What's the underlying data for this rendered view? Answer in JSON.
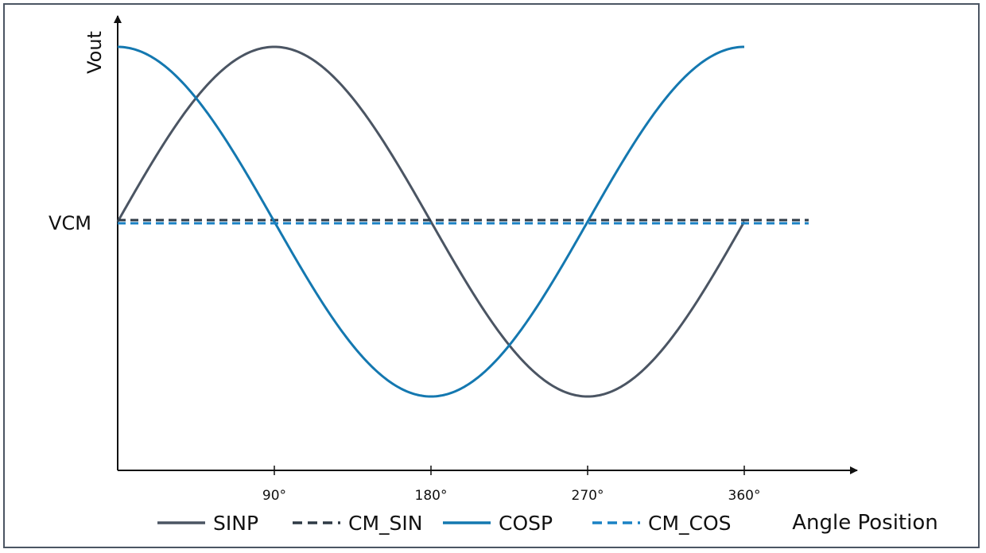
{
  "chart_data": {
    "type": "line",
    "title": "",
    "xlabel": "Angle Position",
    "ylabel": "Vout",
    "y_ref_label": "VCM",
    "x_ticks": [
      {
        "value": 90,
        "label": "90°"
      },
      {
        "value": 180,
        "label": "180°"
      },
      {
        "value": 270,
        "label": "270°"
      },
      {
        "value": 360,
        "label": "360°"
      }
    ],
    "xlim": [
      0,
      390
    ],
    "ylim": [
      -1.4,
      1.0
    ],
    "grid": false,
    "legend_position": "bottom",
    "series": [
      {
        "name": "SINP",
        "function": "sin",
        "x_range": [
          0,
          360
        ],
        "color": "#4b5563",
        "style": "solid"
      },
      {
        "name": "CM_SIN",
        "constant": 0,
        "x_range": [
          0,
          397
        ],
        "color": "#2f3a45",
        "style": "dashed"
      },
      {
        "name": "COSP",
        "function": "cos",
        "x_range": [
          0,
          360
        ],
        "color": "#1478b0",
        "style": "solid"
      },
      {
        "name": "CM_COS",
        "constant": 0,
        "x_range": [
          0,
          397
        ],
        "color": "#1a82c4",
        "style": "dashed"
      }
    ]
  }
}
